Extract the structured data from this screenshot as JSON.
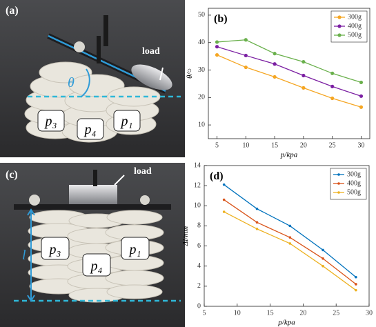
{
  "photos": [
    {
      "label": "(a)",
      "load": "load",
      "angle": "θ",
      "modules": [
        "p₃",
        "p₄",
        "p₁"
      ]
    },
    {
      "label": "(c)",
      "load": "load",
      "length": "l",
      "modules": [
        "p₃",
        "p₄",
        "p₁"
      ]
    }
  ],
  "chart_data": [
    {
      "type": "line",
      "panel_label": "(b)",
      "x_label": "p/kpa",
      "y_label": "θ/○",
      "x": [
        5,
        10,
        15,
        20,
        25,
        30
      ],
      "series": [
        {
          "name": "300g",
          "color": "#f5a623",
          "values": [
            35.5,
            31,
            27.5,
            23.5,
            19.7,
            16.5
          ]
        },
        {
          "name": "400g",
          "color": "#7b1fa2",
          "values": [
            38.5,
            35.3,
            32.2,
            28,
            24,
            20.5
          ]
        },
        {
          "name": "500g",
          "color": "#6ab04c",
          "values": [
            40.2,
            41,
            36,
            33,
            28.8,
            25.5
          ]
        }
      ],
      "xlim": [
        3.5,
        31.5
      ],
      "xticks": [
        5,
        10,
        15,
        20,
        25,
        30
      ],
      "ylim": [
        5,
        52.5
      ],
      "yticks": [
        10,
        20,
        30,
        40,
        50
      ],
      "legend": "upper right"
    },
    {
      "type": "line",
      "panel_label": "(d)",
      "x_label": "p/kpa",
      "y_label": "Δl/mm",
      "x": [
        8,
        13,
        18,
        23,
        28
      ],
      "series": [
        {
          "name": "300g",
          "color": "#0072bd",
          "values": [
            12.1,
            9.7,
            8.0,
            5.6,
            2.9
          ]
        },
        {
          "name": "400g",
          "color": "#d95319",
          "values": [
            10.6,
            8.35,
            6.85,
            4.75,
            2.2
          ]
        },
        {
          "name": "500g",
          "color": "#edb120",
          "values": [
            9.4,
            7.7,
            6.25,
            4.0,
            1.6
          ]
        }
      ],
      "xlim": [
        5,
        30
      ],
      "xticks": [
        5,
        10,
        15,
        20,
        25,
        30
      ],
      "ylim": [
        0,
        14
      ],
      "yticks": [
        0,
        2,
        4,
        6,
        8,
        10,
        12,
        14
      ],
      "legend": "upper right"
    }
  ]
}
